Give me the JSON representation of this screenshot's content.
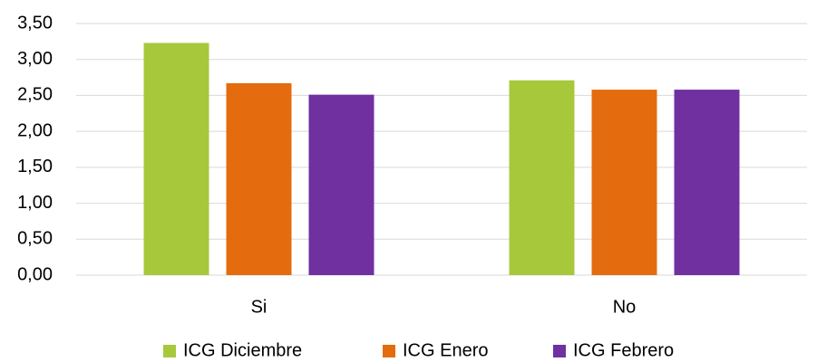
{
  "chart_data": {
    "type": "bar",
    "categories": [
      "Si",
      "No"
    ],
    "series": [
      {
        "name": "ICG Diciembre",
        "color": "#a8c83c",
        "values": [
          3.23,
          2.71
        ]
      },
      {
        "name": "ICG Enero",
        "color": "#e46c0e",
        "values": [
          2.67,
          2.58
        ]
      },
      {
        "name": "ICG Febrero",
        "color": "#7030a0",
        "values": [
          2.51,
          2.58
        ]
      }
    ],
    "ylim": [
      0,
      3.5
    ],
    "yticks": [
      {
        "value": 0,
        "label": "0,00"
      },
      {
        "value": 0.5,
        "label": "0,50"
      },
      {
        "value": 1,
        "label": "1,00"
      },
      {
        "value": 1.5,
        "label": "1,50"
      },
      {
        "value": 2,
        "label": "2,00"
      },
      {
        "value": 2.5,
        "label": "2,50"
      },
      {
        "value": 3,
        "label": "3,00"
      },
      {
        "value": 3.5,
        "label": "3,50"
      }
    ],
    "grid": true,
    "legend": "bottom"
  }
}
